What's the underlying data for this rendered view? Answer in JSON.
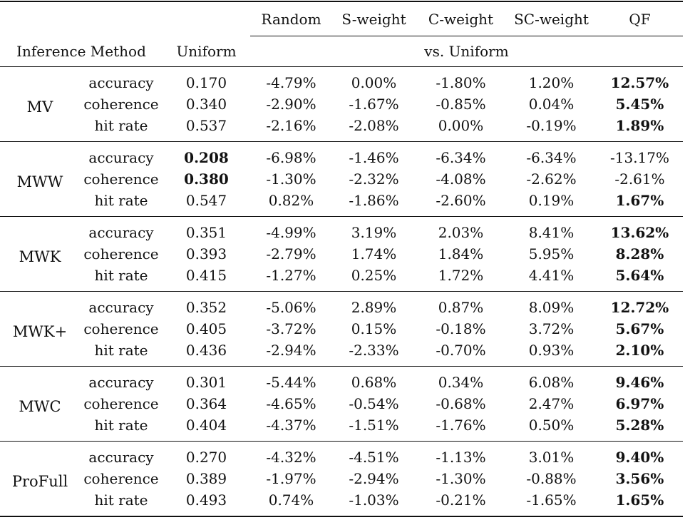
{
  "header": {
    "method_label": "Inference Method",
    "uniform_label": "Uniform",
    "columns": [
      "Random",
      "S-weight",
      "C-weight",
      "SC-weight",
      "QF"
    ],
    "vs_label": "vs. Uniform"
  },
  "groups": [
    {
      "method": "MV",
      "rows": [
        {
          "metric": "accuracy",
          "uniform": "0.170",
          "random": "-4.79%",
          "s_weight": "0.00%",
          "c_weight": "-1.80%",
          "sc_weight": "1.20%",
          "qf": "12.57%"
        },
        {
          "metric": "coherence",
          "uniform": "0.340",
          "random": "-2.90%",
          "s_weight": "-1.67%",
          "c_weight": "-0.85%",
          "sc_weight": "0.04%",
          "qf": "5.45%"
        },
        {
          "metric": "hit rate",
          "uniform": "0.537",
          "random": "-2.16%",
          "s_weight": "-2.08%",
          "c_weight": "0.00%",
          "sc_weight": "-0.19%",
          "qf": "1.89%"
        }
      ]
    },
    {
      "method": "MWW",
      "rows": [
        {
          "metric": "accuracy",
          "uniform": "0.208",
          "random": "-6.98%",
          "s_weight": "-1.46%",
          "c_weight": "-6.34%",
          "sc_weight": "-6.34%",
          "qf": "-13.17%"
        },
        {
          "metric": "coherence",
          "uniform": "0.380",
          "random": "-1.30%",
          "s_weight": "-2.32%",
          "c_weight": "-4.08%",
          "sc_weight": "-2.62%",
          "qf": "-2.61%"
        },
        {
          "metric": "hit rate",
          "uniform": "0.547",
          "random": "0.82%",
          "s_weight": "-1.86%",
          "c_weight": "-2.60%",
          "sc_weight": "0.19%",
          "qf": "1.67%"
        }
      ]
    },
    {
      "method": "MWK",
      "rows": [
        {
          "metric": "accuracy",
          "uniform": "0.351",
          "random": "-4.99%",
          "s_weight": "3.19%",
          "c_weight": "2.03%",
          "sc_weight": "8.41%",
          "qf": "13.62%"
        },
        {
          "metric": "coherence",
          "uniform": "0.393",
          "random": "-2.79%",
          "s_weight": "1.74%",
          "c_weight": "1.84%",
          "sc_weight": "5.95%",
          "qf": "8.28%"
        },
        {
          "metric": "hit rate",
          "uniform": "0.415",
          "random": "-1.27%",
          "s_weight": "0.25%",
          "c_weight": "1.72%",
          "sc_weight": "4.41%",
          "qf": "5.64%"
        }
      ]
    },
    {
      "method": "MWK+",
      "rows": [
        {
          "metric": "accuracy",
          "uniform": "0.352",
          "random": "-5.06%",
          "s_weight": "2.89%",
          "c_weight": "0.87%",
          "sc_weight": "8.09%",
          "qf": "12.72%"
        },
        {
          "metric": "coherence",
          "uniform": "0.405",
          "random": "-3.72%",
          "s_weight": "0.15%",
          "c_weight": "-0.18%",
          "sc_weight": "3.72%",
          "qf": "5.67%"
        },
        {
          "metric": "hit rate",
          "uniform": "0.436",
          "random": "-2.94%",
          "s_weight": "-2.33%",
          "c_weight": "-0.70%",
          "sc_weight": "0.93%",
          "qf": "2.10%"
        }
      ]
    },
    {
      "method": "MWC",
      "rows": [
        {
          "metric": "accuracy",
          "uniform": "0.301",
          "random": "-5.44%",
          "s_weight": "0.68%",
          "c_weight": "0.34%",
          "sc_weight": "6.08%",
          "qf": "9.46%"
        },
        {
          "metric": "coherence",
          "uniform": "0.364",
          "random": "-4.65%",
          "s_weight": "-0.54%",
          "c_weight": "-0.68%",
          "sc_weight": "2.47%",
          "qf": "6.97%"
        },
        {
          "metric": "hit rate",
          "uniform": "0.404",
          "random": "-4.37%",
          "s_weight": "-1.51%",
          "c_weight": "-1.76%",
          "sc_weight": "0.50%",
          "qf": "5.28%"
        }
      ]
    },
    {
      "method": "ProFull",
      "rows": [
        {
          "metric": "accuracy",
          "uniform": "0.270",
          "random": "-4.32%",
          "s_weight": "-4.51%",
          "c_weight": "-1.13%",
          "sc_weight": "3.01%",
          "qf": "9.40%"
        },
        {
          "metric": "coherence",
          "uniform": "0.389",
          "random": "-1.97%",
          "s_weight": "-2.94%",
          "c_weight": "-1.30%",
          "sc_weight": "-0.88%",
          "qf": "3.56%"
        },
        {
          "metric": "hit rate",
          "uniform": "0.493",
          "random": "0.74%",
          "s_weight": "-1.03%",
          "c_weight": "-0.21%",
          "sc_weight": "-1.65%",
          "qf": "1.65%"
        }
      ]
    }
  ],
  "bold_cells": [
    "0.0.qf",
    "0.1.qf",
    "0.2.qf",
    "1.0.uniform",
    "1.1.uniform",
    "1.2.qf",
    "2.0.qf",
    "2.1.qf",
    "2.2.qf",
    "3.0.qf",
    "3.1.qf",
    "3.2.qf",
    "4.0.qf",
    "4.1.qf",
    "4.2.qf",
    "5.0.qf",
    "5.1.qf",
    "5.2.qf"
  ]
}
